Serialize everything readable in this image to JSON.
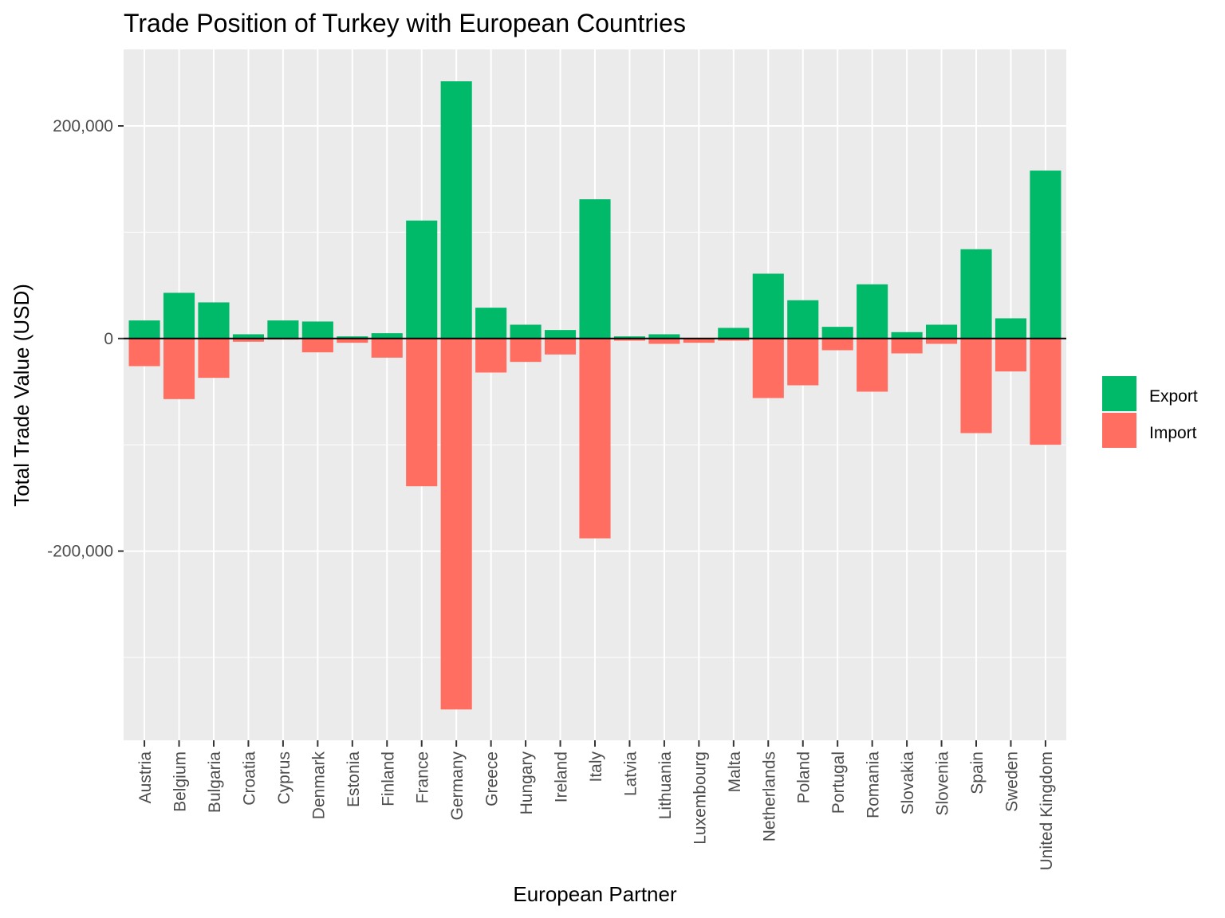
{
  "chart_data": {
    "type": "bar",
    "title": "Trade Position of Turkey with European Countries",
    "xlabel": "European Partner",
    "ylabel": "Total Trade Value (USD)",
    "ylim": [
      -378000,
      272000
    ],
    "y_ticks": [
      -200000,
      0,
      200000
    ],
    "y_tick_labels": [
      "-200,000",
      "0",
      "200,000"
    ],
    "grid": true,
    "legend_position": "right",
    "categories": [
      "Austria",
      "Belgium",
      "Bulgaria",
      "Croatia",
      "Cyprus",
      "Denmark",
      "Estonia",
      "Finland",
      "France",
      "Germany",
      "Greece",
      "Hungary",
      "Ireland",
      "Italy",
      "Latvia",
      "Lithuania",
      "Luxembourg",
      "Malta",
      "Netherlands",
      "Poland",
      "Portugal",
      "Romania",
      "Slovakia",
      "Slovenia",
      "Spain",
      "Sweden",
      "United Kingdom"
    ],
    "series": [
      {
        "name": "Export",
        "color": "#00ba6a",
        "values": [
          17000,
          43000,
          34000,
          4000,
          17000,
          16000,
          2000,
          5000,
          111000,
          242000,
          29000,
          13000,
          8000,
          131000,
          2000,
          4000,
          0,
          10000,
          61000,
          36000,
          11000,
          51000,
          6000,
          13000,
          84000,
          19000,
          158000
        ]
      },
      {
        "name": "Import",
        "color": "#ff6e61",
        "values": [
          -26000,
          -57000,
          -37000,
          -3000,
          -1000,
          -13000,
          -4000,
          -18000,
          -139000,
          -349000,
          -32000,
          -22000,
          -15000,
          -188000,
          -2000,
          -5000,
          -4000,
          -2000,
          -56000,
          -44000,
          -11000,
          -50000,
          -14000,
          -5000,
          -89000,
          -31000,
          -100000
        ]
      }
    ]
  }
}
